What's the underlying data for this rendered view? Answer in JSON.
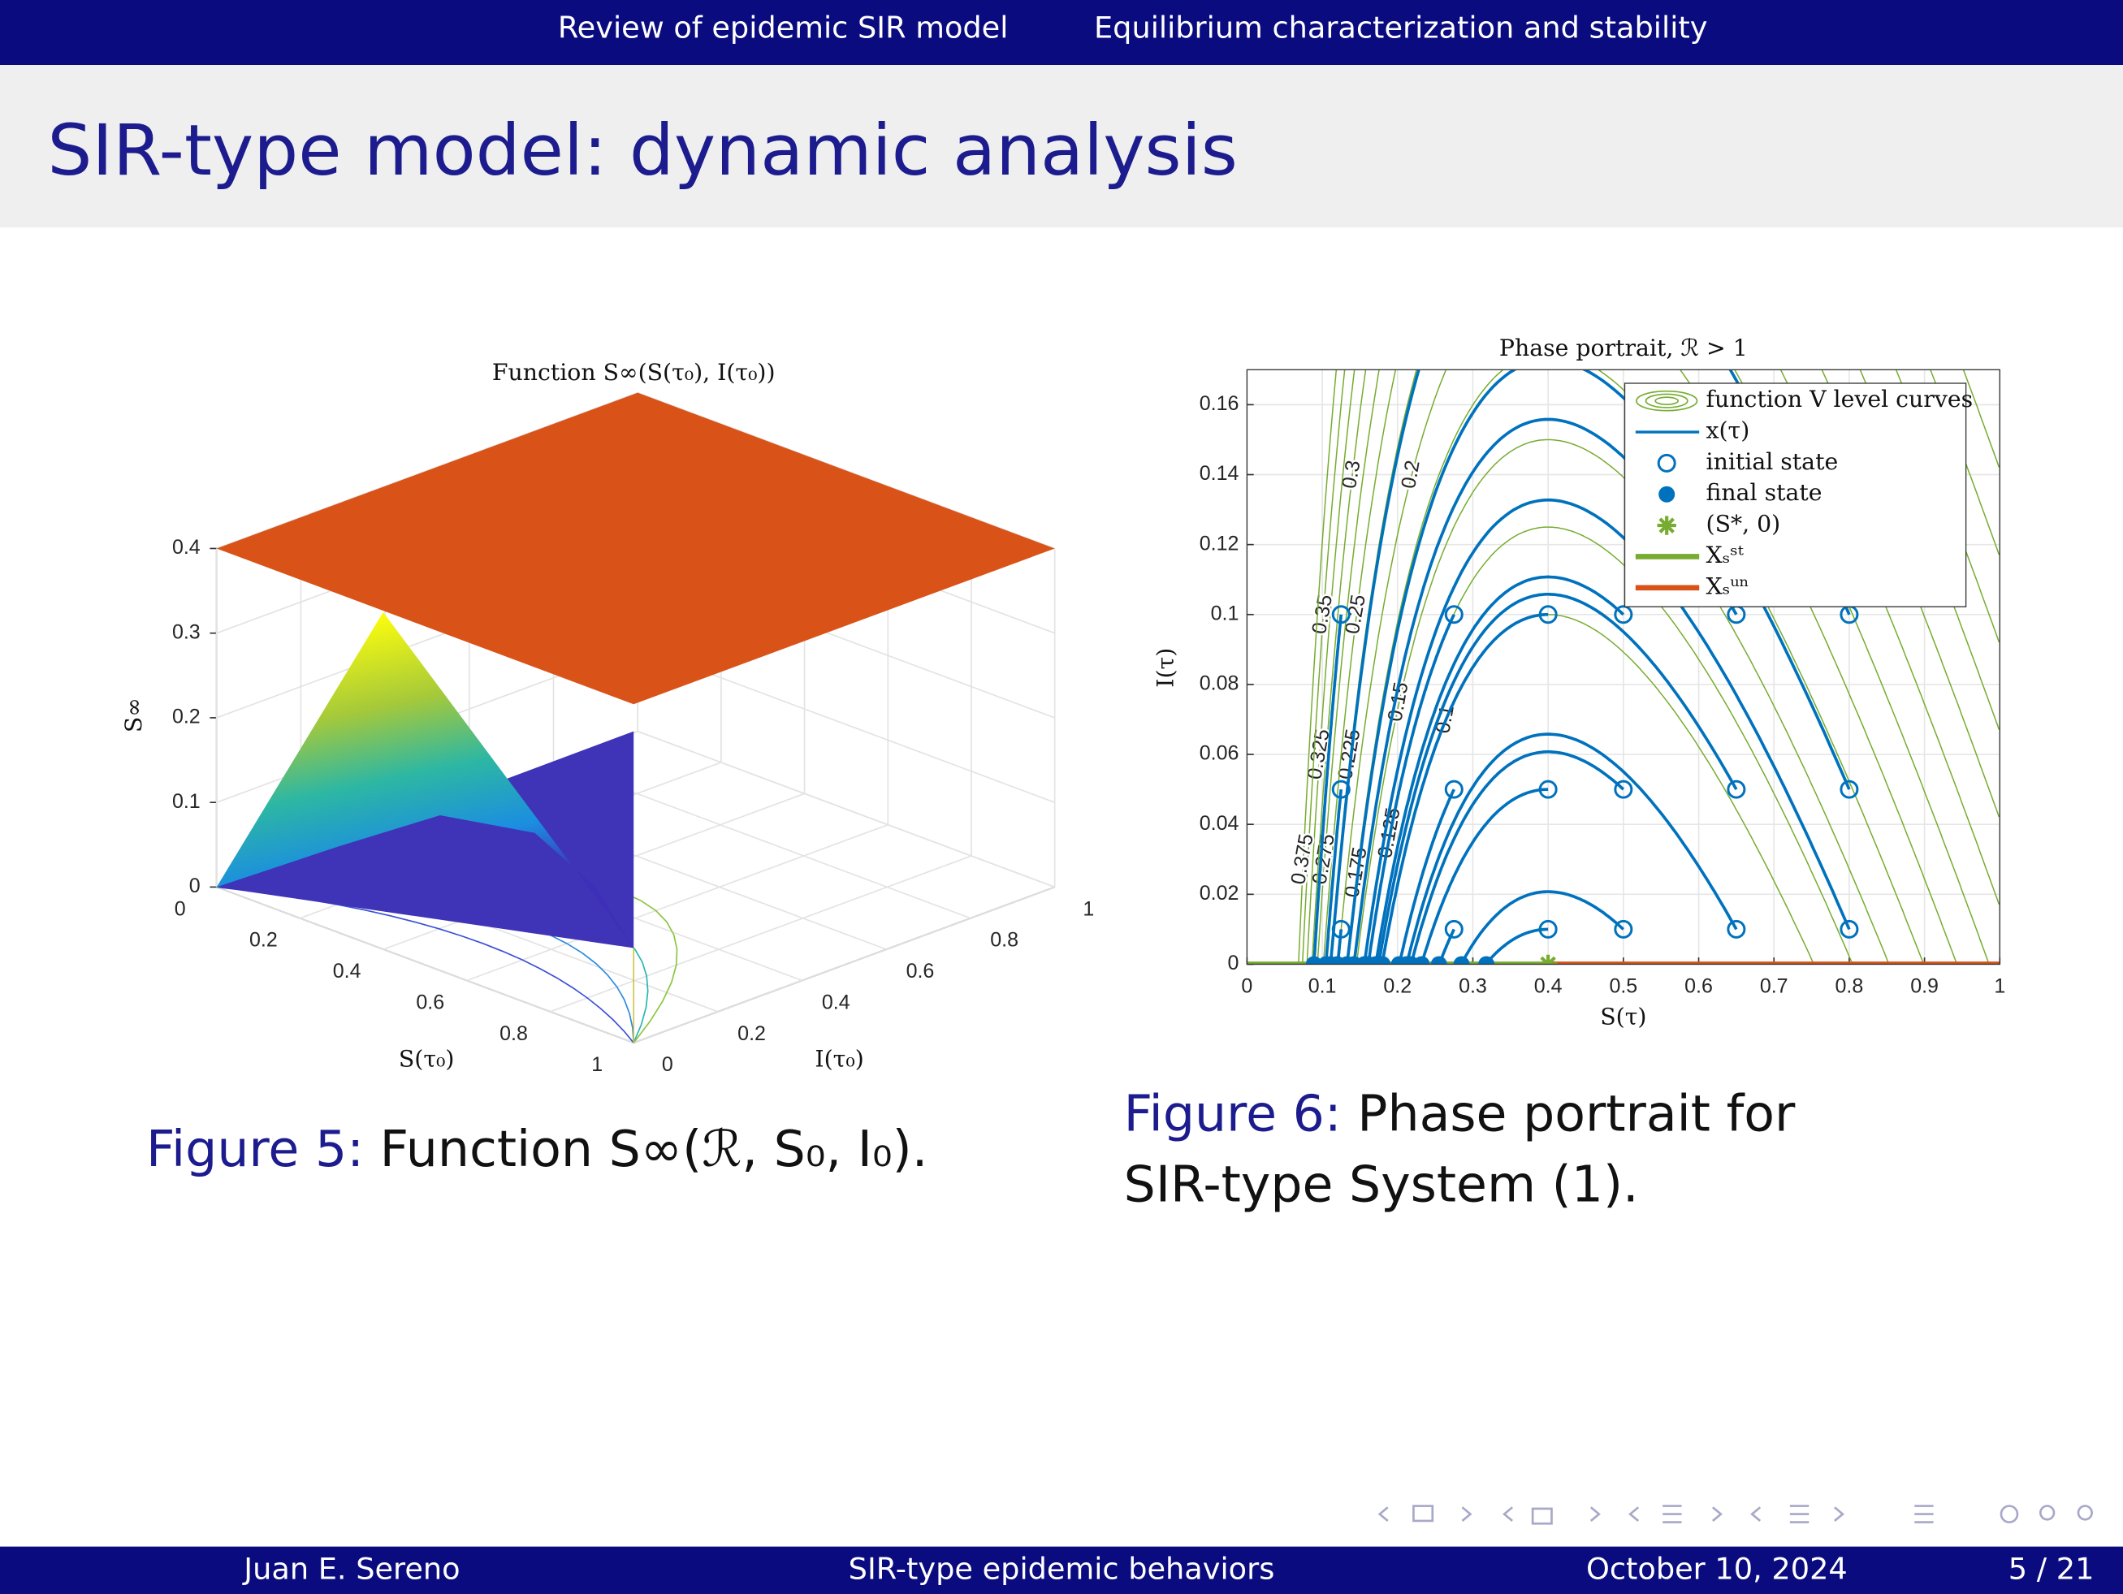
{
  "header": {
    "sections": [
      "Review of epidemic SIR model",
      "Equilibrium characterization and stability"
    ]
  },
  "title": "SIR-type model: dynamic analysis",
  "chart_data": [
    {
      "type": "surface3d",
      "title": "Function S∞(S(τ₀), I(τ₀))",
      "xlabel": "S(τ₀)",
      "ylabel": "I(τ₀)",
      "zlabel": "S∞",
      "xlim": [
        0,
        1
      ],
      "ylim": [
        0,
        1
      ],
      "zlim": [
        0,
        0.4
      ],
      "xticks": [
        0,
        0.2,
        0.4,
        0.6,
        0.8,
        1
      ],
      "yticks": [
        0,
        0.2,
        0.4,
        0.6,
        0.8,
        1
      ],
      "zticks": [
        0,
        0.1,
        0.2,
        0.3,
        0.4
      ],
      "grid": true,
      "caption_label": "Figure 5:",
      "caption": "Function S∞(ℛ, S₀, I₀)."
    },
    {
      "type": "phase",
      "title": "Phase portrait, ℛ > 1",
      "xlabel": "S(τ)",
      "ylabel": "I(τ)",
      "xlim": [
        0,
        1
      ],
      "ylim": [
        0,
        0.17
      ],
      "xticks": [
        0,
        0.1,
        0.2,
        0.3,
        0.4,
        0.5,
        0.6,
        0.7,
        0.8,
        0.9,
        1
      ],
      "yticks": [
        0,
        0.02,
        0.04,
        0.06,
        0.08,
        0.1,
        0.12,
        0.14,
        0.16
      ],
      "grid": true,
      "legend": "upper right",
      "series": [
        {
          "name": "function V level curves",
          "color": "#77AC30",
          "levels": [
            0.1,
            0.125,
            0.15,
            0.175,
            0.2,
            0.225,
            0.25,
            0.275,
            0.3,
            0.325,
            0.35,
            0.375
          ]
        },
        {
          "name": "x(τ)",
          "color": "#0072BD"
        },
        {
          "name": "initial state",
          "color": "#0072BD",
          "x": [
            0.125,
            0.125,
            0.125,
            0.275,
            0.275,
            0.275,
            0.4,
            0.4,
            0.4,
            0.5,
            0.5,
            0.5,
            0.65,
            0.65,
            0.65,
            0.8,
            0.8,
            0.8
          ],
          "values": [
            0.1,
            0.05,
            0.01,
            0.1,
            0.05,
            0.01,
            0.1,
            0.05,
            0.01,
            0.1,
            0.05,
            0.01,
            0.1,
            0.05,
            0.01,
            0.1,
            0.05,
            0.01
          ]
        },
        {
          "name": "final state",
          "color": "#0072BD",
          "x": [
            0.089,
            0.105,
            0.12,
            0.161,
            0.202,
            0.255,
            0.18,
            0.232,
            0.318,
            0.171,
            0.218,
            0.285,
            0.142,
            0.175,
            0.212,
            0.111,
            0.133,
            0.156
          ],
          "values": [
            0,
            0,
            0,
            0,
            0,
            0,
            0,
            0,
            0,
            0,
            0,
            0,
            0,
            0,
            0,
            0,
            0,
            0
          ]
        },
        {
          "name": "(S*, 0)",
          "color": "#77AC30",
          "x": [
            0.4
          ],
          "values": [
            0
          ]
        },
        {
          "name": "Xₛˢᵗ",
          "color": "#77AC30"
        },
        {
          "name": "Xₛᵘⁿ",
          "color": "#D95319"
        }
      ],
      "caption_label": "Figure 6:",
      "caption": "Phase portrait for SIR-type System (1)."
    }
  ],
  "footer": {
    "author": "Juan E. Sereno",
    "short_title": "SIR-type epidemic behaviors",
    "date": "October 10, 2024",
    "page": "5 / 21"
  }
}
